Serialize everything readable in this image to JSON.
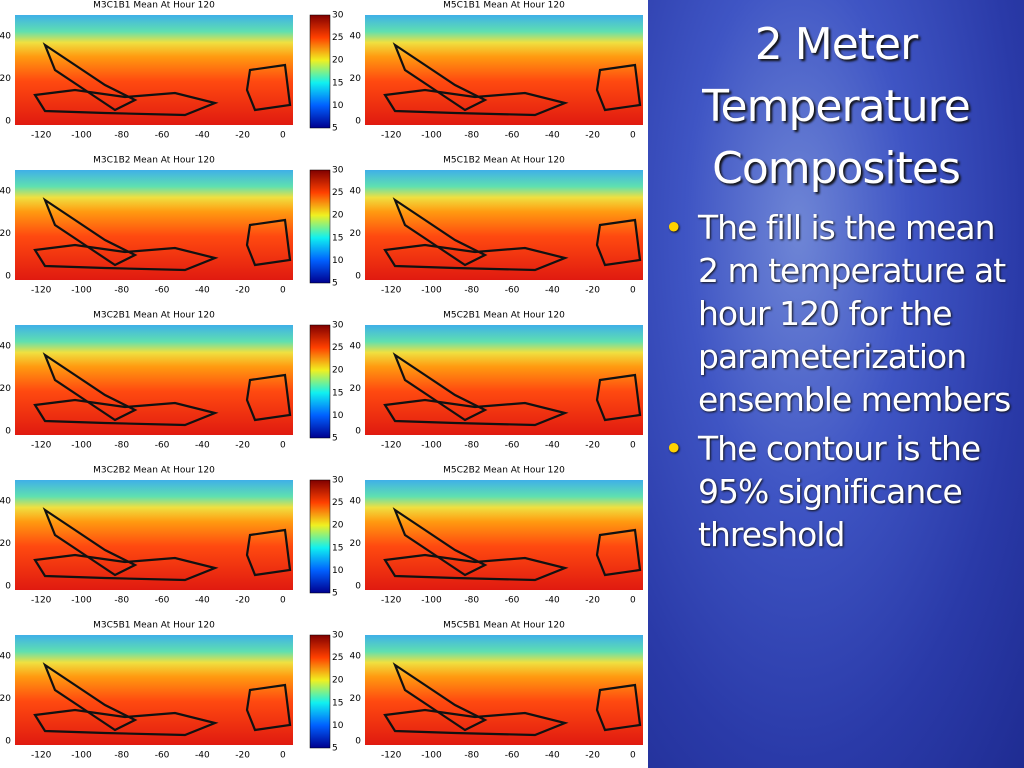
{
  "slide": {
    "title": "2 Meter Temperature Composites",
    "bullets": [
      "The fill is the mean 2 m temperature at hour 120 for the parameterization ensemble members",
      "The contour is the 95% significance threshold"
    ]
  },
  "panels": [
    {
      "title": "M3C1B1 Mean At Hour 120"
    },
    {
      "title": "M5C1B1 Mean At Hour 120"
    },
    {
      "title": "M3C1B2 Mean At Hour 120"
    },
    {
      "title": "M5C1B2 Mean At Hour 120"
    },
    {
      "title": "M3C2B1 Mean At Hour 120"
    },
    {
      "title": "M5C2B1 Mean At Hour 120"
    },
    {
      "title": "M3C2B2 Mean At Hour 120"
    },
    {
      "title": "M5C2B2 Mean At Hour 120"
    },
    {
      "title": "M3C5B1 Mean At Hour 120"
    },
    {
      "title": "M5C5B1 Mean At Hour 120"
    }
  ],
  "x_ticks": [
    -120,
    -100,
    -80,
    -60,
    -40,
    -20,
    0
  ],
  "y_ticks": [
    0,
    20,
    40
  ],
  "colorbar_ticks": [
    5,
    10,
    15,
    20,
    25,
    30
  ]
}
